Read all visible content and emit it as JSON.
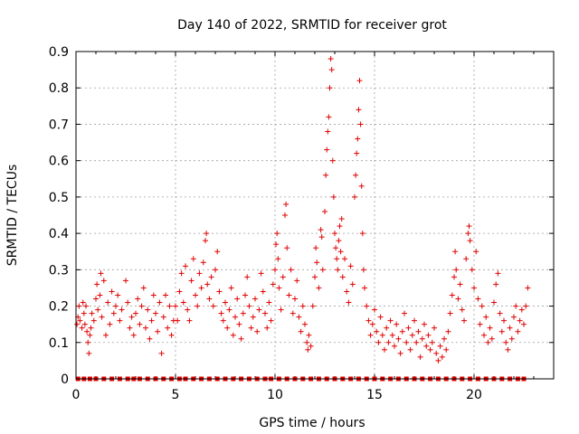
{
  "chart_data": {
    "type": "scatter",
    "title": "Day 140 of 2022, SRMTID for receiver grot",
    "xlabel": "GPS time / hours",
    "ylabel": "SRMTID / TECUs",
    "xlim": [
      0,
      24
    ],
    "ylim": [
      0,
      0.9
    ],
    "xticks": [
      0,
      5,
      10,
      15,
      20
    ],
    "yticks": [
      0,
      0.1,
      0.2,
      0.3,
      0.4,
      0.5,
      0.6,
      0.7,
      0.8,
      0.9
    ],
    "grid": true,
    "marker_color": "#e00000",
    "series": [
      {
        "name": "SRMTID",
        "marker": "plus",
        "points": [
          [
            0.05,
            0.15
          ],
          [
            0.1,
            0.17
          ],
          [
            0.15,
            0.2
          ],
          [
            0.2,
            0.16
          ],
          [
            0.3,
            0.14
          ],
          [
            0.35,
            0.21
          ],
          [
            0.4,
            0.18
          ],
          [
            0.45,
            0.15
          ],
          [
            0.5,
            0.2
          ],
          [
            0.55,
            0.13
          ],
          [
            0.6,
            0.1
          ],
          [
            0.65,
            0.07
          ],
          [
            0.7,
            0.12
          ],
          [
            0.75,
            0.14
          ],
          [
            0.8,
            0.18
          ],
          [
            0.9,
            0.16
          ],
          [
            1.0,
            0.22
          ],
          [
            1.05,
            0.26
          ],
          [
            1.1,
            0.19
          ],
          [
            1.2,
            0.23
          ],
          [
            1.25,
            0.29
          ],
          [
            1.3,
            0.17
          ],
          [
            1.4,
            0.27
          ],
          [
            1.5,
            0.12
          ],
          [
            1.6,
            0.21
          ],
          [
            1.7,
            0.15
          ],
          [
            1.8,
            0.24
          ],
          [
            1.9,
            0.18
          ],
          [
            2.0,
            0.2
          ],
          [
            2.1,
            0.23
          ],
          [
            2.2,
            0.16
          ],
          [
            2.3,
            0.19
          ],
          [
            2.5,
            0.27
          ],
          [
            2.6,
            0.21
          ],
          [
            2.7,
            0.14
          ],
          [
            2.8,
            0.17
          ],
          [
            2.9,
            0.12
          ],
          [
            3.0,
            0.18
          ],
          [
            3.1,
            0.22
          ],
          [
            3.2,
            0.15
          ],
          [
            3.3,
            0.2
          ],
          [
            3.4,
            0.25
          ],
          [
            3.5,
            0.14
          ],
          [
            3.6,
            0.19
          ],
          [
            3.7,
            0.11
          ],
          [
            3.8,
            0.16
          ],
          [
            3.9,
            0.23
          ],
          [
            4.0,
            0.18
          ],
          [
            4.1,
            0.13
          ],
          [
            4.2,
            0.21
          ],
          [
            4.3,
            0.07
          ],
          [
            4.4,
            0.17
          ],
          [
            4.5,
            0.23
          ],
          [
            4.6,
            0.14
          ],
          [
            4.7,
            0.2
          ],
          [
            4.8,
            0.12
          ],
          [
            4.9,
            0.16
          ],
          [
            5.0,
            0.2
          ],
          [
            5.1,
            0.16
          ],
          [
            5.2,
            0.24
          ],
          [
            5.3,
            0.29
          ],
          [
            5.4,
            0.21
          ],
          [
            5.5,
            0.31
          ],
          [
            5.6,
            0.19
          ],
          [
            5.7,
            0.16
          ],
          [
            5.8,
            0.27
          ],
          [
            5.9,
            0.33
          ],
          [
            6.0,
            0.23
          ],
          [
            6.1,
            0.2
          ],
          [
            6.2,
            0.29
          ],
          [
            6.3,
            0.25
          ],
          [
            6.4,
            0.32
          ],
          [
            6.5,
            0.38
          ],
          [
            6.55,
            0.4
          ],
          [
            6.6,
            0.26
          ],
          [
            6.7,
            0.22
          ],
          [
            6.8,
            0.28
          ],
          [
            6.9,
            0.2
          ],
          [
            7.0,
            0.3
          ],
          [
            7.1,
            0.35
          ],
          [
            7.2,
            0.24
          ],
          [
            7.3,
            0.18
          ],
          [
            7.4,
            0.16
          ],
          [
            7.5,
            0.21
          ],
          [
            7.6,
            0.14
          ],
          [
            7.7,
            0.19
          ],
          [
            7.8,
            0.25
          ],
          [
            7.9,
            0.12
          ],
          [
            8.0,
            0.17
          ],
          [
            8.1,
            0.22
          ],
          [
            8.2,
            0.15
          ],
          [
            8.3,
            0.11
          ],
          [
            8.4,
            0.18
          ],
          [
            8.5,
            0.23
          ],
          [
            8.6,
            0.28
          ],
          [
            8.7,
            0.2
          ],
          [
            8.8,
            0.14
          ],
          [
            8.9,
            0.17
          ],
          [
            9.0,
            0.22
          ],
          [
            9.1,
            0.13
          ],
          [
            9.2,
            0.19
          ],
          [
            9.3,
            0.29
          ],
          [
            9.4,
            0.24
          ],
          [
            9.5,
            0.18
          ],
          [
            9.6,
            0.14
          ],
          [
            9.7,
            0.21
          ],
          [
            9.8,
            0.16
          ],
          [
            9.9,
            0.26
          ],
          [
            10.0,
            0.3
          ],
          [
            10.05,
            0.37
          ],
          [
            10.1,
            0.4
          ],
          [
            10.15,
            0.33
          ],
          [
            10.2,
            0.25
          ],
          [
            10.3,
            0.19
          ],
          [
            10.4,
            0.28
          ],
          [
            10.5,
            0.45
          ],
          [
            10.55,
            0.48
          ],
          [
            10.6,
            0.36
          ],
          [
            10.7,
            0.23
          ],
          [
            10.8,
            0.3
          ],
          [
            10.9,
            0.18
          ],
          [
            11.0,
            0.22
          ],
          [
            11.1,
            0.27
          ],
          [
            11.2,
            0.17
          ],
          [
            11.3,
            0.13
          ],
          [
            11.4,
            0.2
          ],
          [
            11.5,
            0.15
          ],
          [
            11.6,
            0.1
          ],
          [
            11.65,
            0.08
          ],
          [
            11.7,
            0.12
          ],
          [
            11.8,
            0.09
          ],
          [
            11.9,
            0.2
          ],
          [
            12.0,
            0.28
          ],
          [
            12.05,
            0.36
          ],
          [
            12.1,
            0.32
          ],
          [
            12.2,
            0.25
          ],
          [
            12.3,
            0.41
          ],
          [
            12.35,
            0.39
          ],
          [
            12.4,
            0.3
          ],
          [
            12.5,
            0.46
          ],
          [
            12.55,
            0.56
          ],
          [
            12.6,
            0.63
          ],
          [
            12.65,
            0.68
          ],
          [
            12.7,
            0.72
          ],
          [
            12.75,
            0.8
          ],
          [
            12.8,
            0.88
          ],
          [
            12.85,
            0.85
          ],
          [
            12.9,
            0.6
          ],
          [
            12.95,
            0.5
          ],
          [
            13.0,
            0.4
          ],
          [
            13.05,
            0.36
          ],
          [
            13.1,
            0.33
          ],
          [
            13.15,
            0.3
          ],
          [
            13.2,
            0.38
          ],
          [
            13.25,
            0.42
          ],
          [
            13.3,
            0.35
          ],
          [
            13.35,
            0.44
          ],
          [
            13.4,
            0.28
          ],
          [
            13.5,
            0.33
          ],
          [
            13.6,
            0.24
          ],
          [
            13.7,
            0.21
          ],
          [
            13.8,
            0.31
          ],
          [
            13.9,
            0.26
          ],
          [
            14.0,
            0.5
          ],
          [
            14.05,
            0.56
          ],
          [
            14.1,
            0.62
          ],
          [
            14.15,
            0.66
          ],
          [
            14.2,
            0.74
          ],
          [
            14.25,
            0.82
          ],
          [
            14.3,
            0.7
          ],
          [
            14.35,
            0.53
          ],
          [
            14.4,
            0.4
          ],
          [
            14.45,
            0.3
          ],
          [
            14.5,
            0.25
          ],
          [
            14.6,
            0.2
          ],
          [
            14.7,
            0.16
          ],
          [
            14.8,
            0.12
          ],
          [
            14.9,
            0.15
          ],
          [
            15.0,
            0.19
          ],
          [
            15.1,
            0.13
          ],
          [
            15.2,
            0.1
          ],
          [
            15.3,
            0.17
          ],
          [
            15.4,
            0.12
          ],
          [
            15.5,
            0.08
          ],
          [
            15.6,
            0.14
          ],
          [
            15.7,
            0.1
          ],
          [
            15.8,
            0.16
          ],
          [
            15.9,
            0.12
          ],
          [
            16.0,
            0.09
          ],
          [
            16.1,
            0.15
          ],
          [
            16.2,
            0.11
          ],
          [
            16.3,
            0.07
          ],
          [
            16.4,
            0.13
          ],
          [
            16.5,
            0.18
          ],
          [
            16.6,
            0.1
          ],
          [
            16.7,
            0.14
          ],
          [
            16.8,
            0.08
          ],
          [
            16.9,
            0.12
          ],
          [
            17.0,
            0.16
          ],
          [
            17.1,
            0.1
          ],
          [
            17.2,
            0.13
          ],
          [
            17.3,
            0.06
          ],
          [
            17.4,
            0.11
          ],
          [
            17.5,
            0.15
          ],
          [
            17.6,
            0.09
          ],
          [
            17.7,
            0.12
          ],
          [
            17.8,
            0.08
          ],
          [
            17.9,
            0.1
          ],
          [
            18.0,
            0.14
          ],
          [
            18.1,
            0.07
          ],
          [
            18.2,
            0.05
          ],
          [
            18.3,
            0.09
          ],
          [
            18.4,
            0.06
          ],
          [
            18.5,
            0.11
          ],
          [
            18.6,
            0.08
          ],
          [
            18.7,
            0.13
          ],
          [
            18.8,
            0.18
          ],
          [
            18.9,
            0.23
          ],
          [
            19.0,
            0.28
          ],
          [
            19.05,
            0.35
          ],
          [
            19.1,
            0.3
          ],
          [
            19.2,
            0.22
          ],
          [
            19.3,
            0.26
          ],
          [
            19.4,
            0.19
          ],
          [
            19.5,
            0.16
          ],
          [
            19.6,
            0.33
          ],
          [
            19.7,
            0.4
          ],
          [
            19.75,
            0.42
          ],
          [
            19.8,
            0.38
          ],
          [
            19.9,
            0.3
          ],
          [
            20.0,
            0.25
          ],
          [
            20.1,
            0.35
          ],
          [
            20.2,
            0.22
          ],
          [
            20.3,
            0.15
          ],
          [
            20.4,
            0.2
          ],
          [
            20.5,
            0.12
          ],
          [
            20.6,
            0.17
          ],
          [
            20.7,
            0.1
          ],
          [
            20.8,
            0.14
          ],
          [
            20.9,
            0.11
          ],
          [
            21.0,
            0.21
          ],
          [
            21.1,
            0.26
          ],
          [
            21.2,
            0.29
          ],
          [
            21.3,
            0.18
          ],
          [
            21.4,
            0.13
          ],
          [
            21.5,
            0.16
          ],
          [
            21.6,
            0.1
          ],
          [
            21.7,
            0.08
          ],
          [
            21.8,
            0.14
          ],
          [
            21.9,
            0.11
          ],
          [
            22.0,
            0.17
          ],
          [
            22.1,
            0.2
          ],
          [
            22.2,
            0.13
          ],
          [
            22.3,
            0.16
          ],
          [
            22.4,
            0.19
          ],
          [
            22.5,
            0.15
          ],
          [
            22.6,
            0.2
          ],
          [
            22.7,
            0.25
          ]
        ]
      },
      {
        "name": "zero-level",
        "marker": "square",
        "points": [
          [
            0.1,
            0
          ],
          [
            0.4,
            0
          ],
          [
            0.7,
            0
          ],
          [
            1.0,
            0
          ],
          [
            1.4,
            0
          ],
          [
            1.8,
            0
          ],
          [
            2.2,
            0
          ],
          [
            2.6,
            0
          ],
          [
            2.9,
            0
          ],
          [
            3.2,
            0
          ],
          [
            3.6,
            0
          ],
          [
            4.0,
            0
          ],
          [
            4.4,
            0
          ],
          [
            4.8,
            0
          ],
          [
            5.2,
            0
          ],
          [
            5.5,
            0
          ],
          [
            5.9,
            0
          ],
          [
            6.3,
            0
          ],
          [
            6.7,
            0
          ],
          [
            7.1,
            0
          ],
          [
            7.5,
            0
          ],
          [
            7.9,
            0
          ],
          [
            8.3,
            0
          ],
          [
            8.7,
            0
          ],
          [
            9.1,
            0
          ],
          [
            9.5,
            0
          ],
          [
            9.8,
            0
          ],
          [
            10.2,
            0
          ],
          [
            10.6,
            0
          ],
          [
            11.0,
            0
          ],
          [
            11.4,
            0
          ],
          [
            11.8,
            0
          ],
          [
            12.2,
            0
          ],
          [
            12.6,
            0
          ],
          [
            13.0,
            0
          ],
          [
            13.4,
            0
          ],
          [
            13.8,
            0
          ],
          [
            14.2,
            0
          ],
          [
            14.6,
            0
          ],
          [
            15.0,
            0
          ],
          [
            15.4,
            0
          ],
          [
            15.8,
            0
          ],
          [
            16.2,
            0
          ],
          [
            16.6,
            0
          ],
          [
            17.0,
            0
          ],
          [
            17.4,
            0
          ],
          [
            17.8,
            0
          ],
          [
            18.2,
            0
          ],
          [
            18.6,
            0
          ],
          [
            19.0,
            0
          ],
          [
            19.4,
            0
          ],
          [
            19.8,
            0
          ],
          [
            20.2,
            0
          ],
          [
            20.6,
            0
          ],
          [
            21.0,
            0
          ],
          [
            21.4,
            0
          ],
          [
            21.8,
            0
          ],
          [
            22.2,
            0
          ],
          [
            22.5,
            0
          ]
        ]
      }
    ]
  }
}
